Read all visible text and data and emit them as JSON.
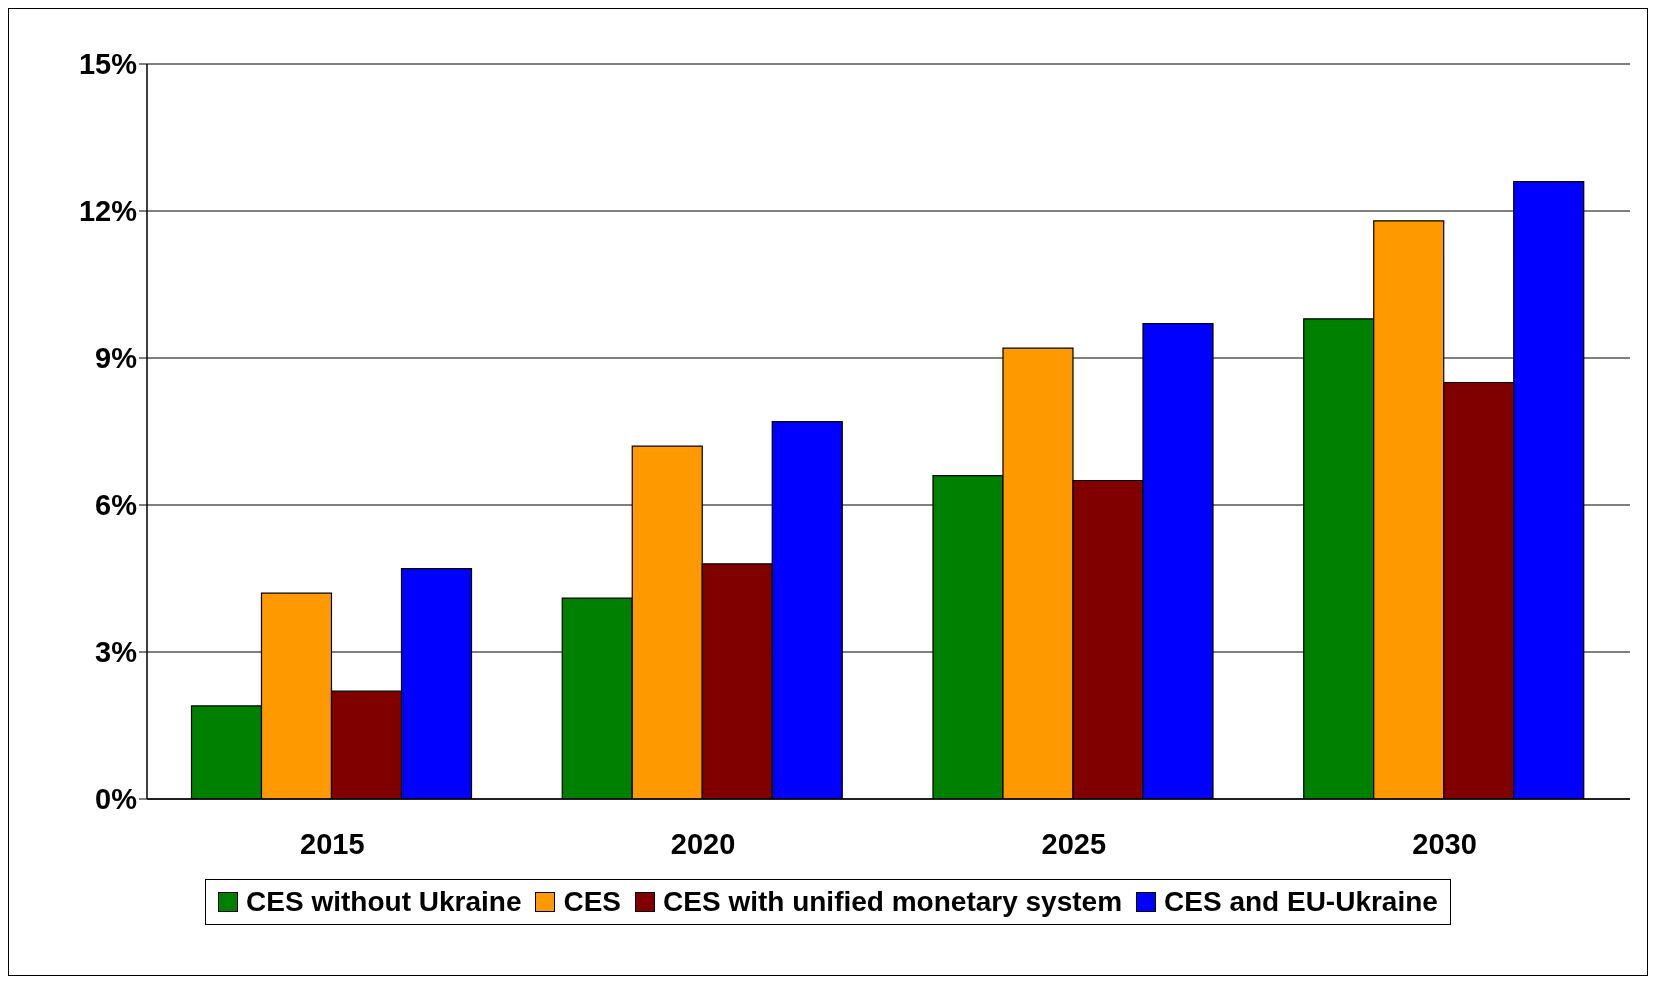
{
  "chart_data": {
    "type": "bar",
    "categories": [
      "2015",
      "2020",
      "2025",
      "2030"
    ],
    "series": [
      {
        "name": "CES without Ukraine",
        "color": "#008000",
        "values": [
          1.9,
          4.1,
          6.6,
          9.8
        ]
      },
      {
        "name": "CES",
        "color": "#ff9900",
        "values": [
          4.2,
          7.2,
          9.2,
          11.8
        ]
      },
      {
        "name": "CES with unified monetary system",
        "color": "#800000",
        "values": [
          2.2,
          4.8,
          6.5,
          8.5
        ]
      },
      {
        "name": "CES and EU-Ukraine",
        "color": "#0000ff",
        "values": [
          4.7,
          7.7,
          9.7,
          12.6
        ]
      }
    ],
    "ylim": [
      0,
      15
    ],
    "yticks": [
      {
        "value": 0,
        "label": "0%"
      },
      {
        "value": 3,
        "label": "3%"
      },
      {
        "value": 6,
        "label": "6%"
      },
      {
        "value": 9,
        "label": "9%"
      },
      {
        "value": 12,
        "label": "12%"
      },
      {
        "value": 15,
        "label": "15%"
      }
    ],
    "grid": "y",
    "legend": "bottom"
  }
}
